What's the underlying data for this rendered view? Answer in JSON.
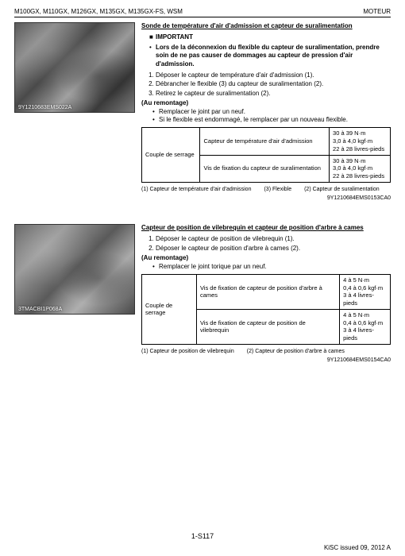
{
  "header": {
    "left": "M100GX, M110GX, M126GX, M135GX, M135GX-FS, WSM",
    "right": "MOTEUR"
  },
  "section1": {
    "imgLabel": "9Y1210683EMS022A",
    "title": "Sonde de température d'air d'admission et capteur de suralimentation",
    "importantLabel": "IMPORTANT",
    "importantText": "Lors de la déconnexion du flexible du capteur de suralimentation, prendre soin de ne pas causer de dommages au capteur de pression d'air d'admission.",
    "steps": [
      "Déposer le capteur de température d'air d'admission (1).",
      "Débrancher le flexible (3) du capteur de suralimentation (2).",
      "Retirez le capteur de suralimentation (2)."
    ],
    "remount": "(Au remontage)",
    "subBullets": [
      "Remplacer le joint par un neuf.",
      "Si le flexible est endommagé, le remplacer par un nouveau flexible."
    ],
    "table": {
      "rowLabel": "Couple de serrage",
      "rows": [
        {
          "item": "Capteur de température d'air d'admission",
          "v": "30 à 39 N·m\n3,0 à 4,0 kgf·m\n22 à 28 livres-pieds"
        },
        {
          "item": "Vis de fixation du capteur de suralimentation",
          "v": "30 à 39 N·m\n3,0 à 4,0 kgf·m\n22 à 28 livres-pieds"
        }
      ]
    },
    "legend": [
      "(1) Capteur de température d'air d'admission",
      "(2) Capteur de suralimentation",
      "(3) Flexible"
    ],
    "docCode": "9Y1210684EMS0153CA0"
  },
  "section2": {
    "imgLabel": "3TMACBI1P068A",
    "title": "Capteur de position de vilebrequin et capteur de position d'arbre à cames",
    "steps": [
      "Déposer le capteur de position de vilebrequin (1).",
      "Déposer le capteur de position d'arbre à cames (2)."
    ],
    "remount": "(Au remontage)",
    "subBullets": [
      "Remplacer le joint torique par un neuf."
    ],
    "table": {
      "rowLabel": "Couple de serrage",
      "rows": [
        {
          "item": "Vis de fixation de capteur de position d'arbre à cames",
          "v": "4 à 5 N·m\n0,4 à 0,6 kgf·m\n3 à 4 livres-pieds"
        },
        {
          "item": "Vis de fixation de capteur de position de vilebrequin",
          "v": "4 à 5 N·m\n0,4 à 0,6 kgf·m\n3 à 4 livres-pieds"
        }
      ]
    },
    "legend": [
      "(1) Capteur de position de vilebrequin",
      "(2) Capteur de position d'arbre à cames"
    ],
    "docCode": "9Y1210684EMS0154CA0"
  },
  "footer": {
    "center": "1-S117",
    "right": "KiSC issued 09, 2012 A"
  }
}
